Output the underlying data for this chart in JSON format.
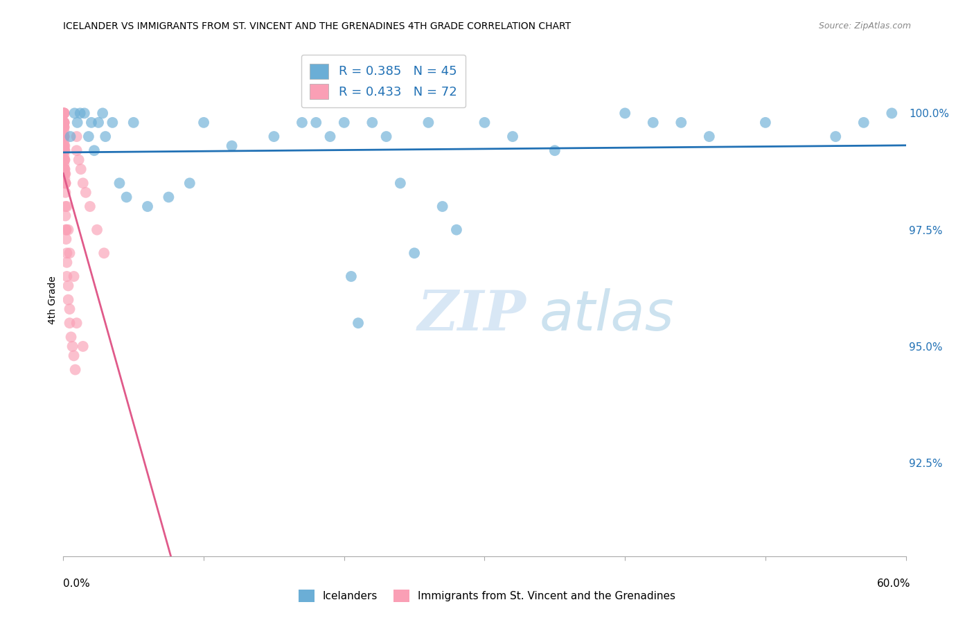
{
  "title": "ICELANDER VS IMMIGRANTS FROM ST. VINCENT AND THE GRENADINES 4TH GRADE CORRELATION CHART",
  "source": "Source: ZipAtlas.com",
  "ylabel": "4th Grade",
  "xmin": 0.0,
  "xmax": 60.0,
  "ymin": 90.5,
  "ymax": 101.5,
  "blue_R": 0.385,
  "blue_N": 45,
  "pink_R": 0.433,
  "pink_N": 72,
  "blue_color": "#6baed6",
  "pink_color": "#fa9fb5",
  "blue_line_color": "#2171b5",
  "pink_line_color": "#e05a8a",
  "watermark_zip": "ZIP",
  "watermark_atlas": "atlas",
  "legend_label_blue": "Icelanders",
  "legend_label_pink": "Immigrants from St. Vincent and the Grenadines",
  "yticks": [
    92.5,
    95.0,
    97.5,
    100.0
  ],
  "ytick_labels": [
    "92.5%",
    "95.0%",
    "97.5%",
    "100.0%"
  ],
  "blue_x": [
    0.5,
    0.8,
    1.0,
    1.2,
    1.5,
    1.8,
    2.0,
    2.2,
    2.5,
    2.8,
    3.0,
    3.5,
    4.0,
    4.5,
    5.0,
    6.0,
    7.5,
    9.0,
    10.0,
    12.0,
    15.0,
    17.0,
    18.0,
    19.0,
    20.0,
    20.5,
    21.0,
    22.0,
    23.0,
    24.0,
    25.0,
    26.0,
    27.0,
    28.0,
    30.0,
    32.0,
    35.0,
    40.0,
    42.0,
    44.0,
    46.0,
    50.0,
    55.0,
    57.0,
    59.0
  ],
  "blue_y": [
    99.5,
    100.0,
    99.8,
    100.0,
    100.0,
    99.5,
    99.8,
    99.2,
    99.8,
    100.0,
    99.5,
    99.8,
    98.5,
    98.2,
    99.8,
    98.0,
    98.2,
    98.5,
    99.8,
    99.3,
    99.5,
    99.8,
    99.8,
    99.5,
    99.8,
    96.5,
    95.5,
    99.8,
    99.5,
    98.5,
    97.0,
    99.8,
    98.0,
    97.5,
    99.8,
    99.5,
    99.2,
    100.0,
    99.8,
    99.8,
    99.5,
    99.8,
    99.5,
    99.8,
    100.0
  ],
  "pink_x": [
    0.05,
    0.05,
    0.05,
    0.05,
    0.05,
    0.05,
    0.05,
    0.05,
    0.05,
    0.05,
    0.05,
    0.05,
    0.05,
    0.05,
    0.05,
    0.1,
    0.1,
    0.1,
    0.1,
    0.1,
    0.1,
    0.1,
    0.1,
    0.15,
    0.15,
    0.15,
    0.15,
    0.15,
    0.15,
    0.2,
    0.2,
    0.2,
    0.25,
    0.25,
    0.25,
    0.35,
    0.35,
    0.45,
    0.45,
    0.55,
    0.65,
    0.75,
    0.85,
    0.95,
    0.95,
    1.1,
    1.25,
    1.4,
    1.6,
    1.9,
    2.4,
    2.9,
    0.05,
    0.05,
    0.05,
    0.05,
    0.05,
    0.05,
    0.05,
    0.05,
    0.05,
    0.05,
    0.05,
    0.1,
    0.1,
    0.15,
    0.25,
    0.35,
    0.45,
    0.75,
    0.95,
    1.4
  ],
  "pink_y": [
    100.0,
    100.0,
    100.0,
    100.0,
    100.0,
    99.8,
    99.8,
    99.8,
    99.8,
    99.7,
    99.7,
    99.5,
    99.5,
    99.5,
    99.3,
    99.3,
    99.2,
    99.2,
    99.0,
    99.0,
    98.8,
    98.8,
    98.7,
    98.7,
    98.5,
    98.5,
    98.3,
    98.0,
    97.8,
    97.5,
    97.5,
    97.3,
    97.0,
    96.8,
    96.5,
    96.3,
    96.0,
    95.8,
    95.5,
    95.2,
    95.0,
    94.8,
    94.5,
    99.5,
    99.2,
    99.0,
    98.8,
    98.5,
    98.3,
    98.0,
    97.5,
    97.0,
    99.8,
    99.7,
    99.6,
    99.5,
    99.4,
    99.3,
    99.2,
    99.1,
    99.0,
    98.9,
    98.8,
    98.7,
    98.6,
    98.5,
    98.0,
    97.5,
    97.0,
    96.5,
    95.5,
    95.0
  ]
}
